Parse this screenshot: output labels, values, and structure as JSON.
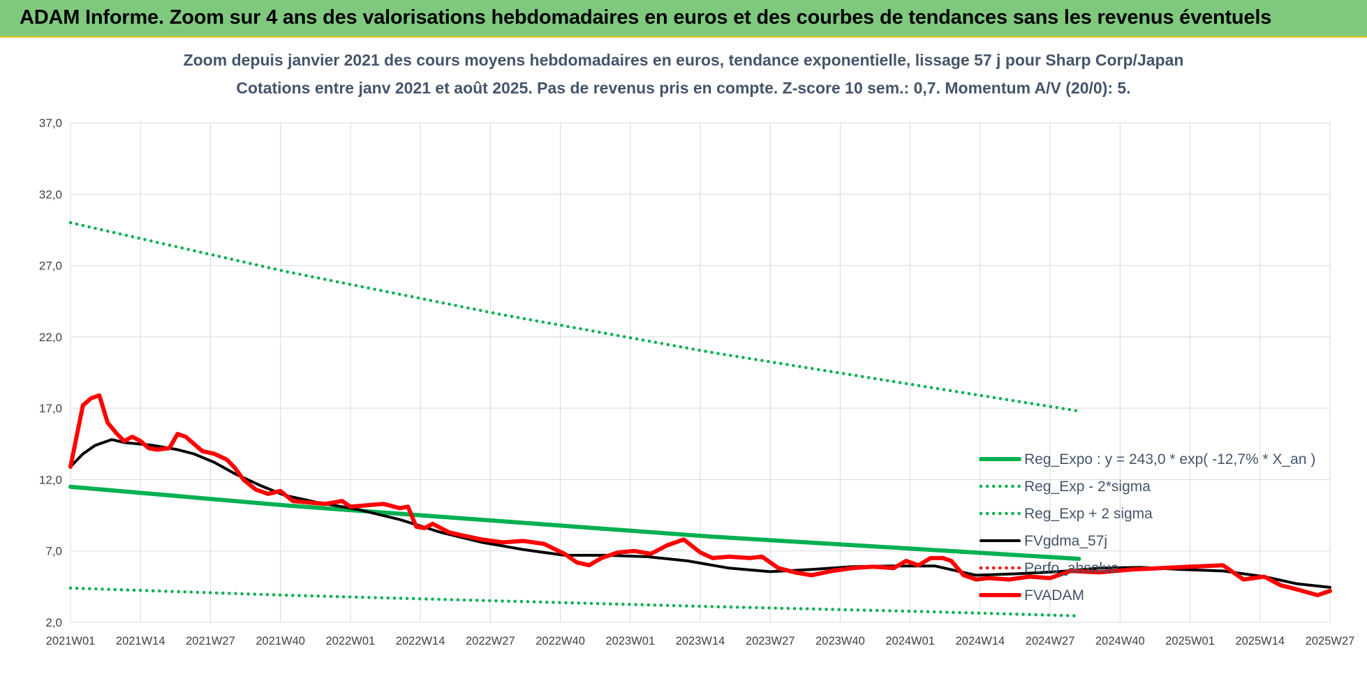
{
  "banner": {
    "title": "ADAM Informe. Zoom sur 4 ans des valorisations hebdomadaires en euros et des courbes de tendances sans les revenus éventuels"
  },
  "colors": {
    "trend": "#00b050",
    "band": "#00b050",
    "fvgdma": "#000000",
    "perfo": "#ff0000",
    "fvadam": "#ff0000",
    "grid": "#d9d9d9",
    "banner": "#7fc97f"
  },
  "chart_data": {
    "type": "line",
    "title": "Zoom depuis janvier 2021 des cours moyens hebdomadaires en euros, tendance exponentielle, lissage 57 j pour Sharp Corp/Japan",
    "subtitle": "Cotations entre janv 2021 et août 2025.  Pas de revenus pris en compte. Z-score 10 sem.: 0,7. Momentum A/V (20/0): 5.",
    "xlabel": "",
    "ylabel": "",
    "ylim": [
      2.0,
      37.0
    ],
    "ytick_labels": [
      "2,0",
      "7,0",
      "12,0",
      "17,0",
      "22,0",
      "27,0",
      "32,0",
      "37,0"
    ],
    "ytick_values": [
      2,
      7,
      12,
      17,
      22,
      27,
      32,
      37
    ],
    "xtick_labels": [
      "2021W01",
      "2021W14",
      "2021W27",
      "2021W40",
      "2022W01",
      "2022W14",
      "2022W27",
      "2022W40",
      "2023W01",
      "2023W14",
      "2023W27",
      "2023W40",
      "2024W01",
      "2024W14",
      "2024W27",
      "2024W40",
      "2025W01",
      "2025W14",
      "2025W27"
    ],
    "x_week_count": 245,
    "grid": true,
    "legend_position": "right",
    "series": [
      {
        "name": "Reg_Expo : y = 243,0 * exp( -12,7% *  X_an )",
        "style": "solid-thick",
        "color": "#00b050",
        "points": [
          [
            0,
            11.5
          ],
          [
            52,
            10.2
          ],
          [
            104,
            9.1
          ],
          [
            156,
            8.0
          ],
          [
            208,
            7.1
          ],
          [
            245,
            6.45
          ]
        ]
      },
      {
        "name": "Reg_Exp - 2*sigma",
        "style": "dotted",
        "color": "#00b050",
        "points": [
          [
            0,
            4.4
          ],
          [
            52,
            3.9
          ],
          [
            104,
            3.5
          ],
          [
            156,
            3.1
          ],
          [
            208,
            2.75
          ],
          [
            245,
            2.45
          ]
        ]
      },
      {
        "name": "Reg_Exp + 2 sigma",
        "style": "dotted",
        "color": "#00b050",
        "points": [
          [
            0,
            30.0
          ],
          [
            52,
            26.6
          ],
          [
            104,
            23.6
          ],
          [
            156,
            20.9
          ],
          [
            208,
            18.5
          ],
          [
            245,
            16.8
          ]
        ]
      },
      {
        "name": "FVgdma_57j",
        "style": "solid",
        "color": "#000000",
        "points": [
          [
            0,
            12.9
          ],
          [
            3,
            13.8
          ],
          [
            6,
            14.4
          ],
          [
            10,
            14.8
          ],
          [
            13,
            14.6
          ],
          [
            20,
            14.4
          ],
          [
            26,
            14.1
          ],
          [
            30,
            13.8
          ],
          [
            35,
            13.2
          ],
          [
            40,
            12.4
          ],
          [
            46,
            11.6
          ],
          [
            52,
            10.9
          ],
          [
            60,
            10.4
          ],
          [
            70,
            9.9
          ],
          [
            80,
            9.2
          ],
          [
            90,
            8.3
          ],
          [
            100,
            7.6
          ],
          [
            110,
            7.1
          ],
          [
            120,
            6.7
          ],
          [
            130,
            6.7
          ],
          [
            140,
            6.6
          ],
          [
            150,
            6.3
          ],
          [
            160,
            5.8
          ],
          [
            170,
            5.55
          ],
          [
            180,
            5.7
          ],
          [
            190,
            5.9
          ],
          [
            200,
            5.95
          ],
          [
            210,
            5.95
          ],
          [
            220,
            5.3
          ],
          [
            230,
            5.4
          ],
          [
            240,
            5.55
          ],
          [
            250,
            5.8
          ],
          [
            260,
            5.85
          ],
          [
            270,
            5.7
          ],
          [
            280,
            5.6
          ],
          [
            290,
            5.2
          ],
          [
            298,
            4.7
          ],
          [
            306,
            4.45
          ]
        ]
      },
      {
        "name": "Perfo_absolue",
        "style": "dotted",
        "color": "#ff0000",
        "points": []
      },
      {
        "name": "FVADAM",
        "style": "solid-thick",
        "color": "#ff0000",
        "points": [
          [
            0,
            12.9
          ],
          [
            3,
            17.2
          ],
          [
            5,
            17.7
          ],
          [
            7,
            17.9
          ],
          [
            9,
            16.0
          ],
          [
            11,
            15.3
          ],
          [
            13,
            14.7
          ],
          [
            15,
            15.0
          ],
          [
            17,
            14.7
          ],
          [
            19,
            14.2
          ],
          [
            21,
            14.1
          ],
          [
            24,
            14.2
          ],
          [
            26,
            15.2
          ],
          [
            28,
            15.0
          ],
          [
            30,
            14.5
          ],
          [
            32,
            14.0
          ],
          [
            35,
            13.8
          ],
          [
            38,
            13.4
          ],
          [
            40,
            12.8
          ],
          [
            42,
            12.0
          ],
          [
            45,
            11.3
          ],
          [
            48,
            11.0
          ],
          [
            51,
            11.2
          ],
          [
            54,
            10.5
          ],
          [
            58,
            10.4
          ],
          [
            62,
            10.3
          ],
          [
            66,
            10.5
          ],
          [
            68,
            10.1
          ],
          [
            72,
            10.2
          ],
          [
            76,
            10.3
          ],
          [
            80,
            10.0
          ],
          [
            82,
            10.1
          ],
          [
            84,
            8.7
          ],
          [
            86,
            8.6
          ],
          [
            88,
            8.9
          ],
          [
            92,
            8.3
          ],
          [
            95,
            8.1
          ],
          [
            100,
            7.8
          ],
          [
            105,
            7.6
          ],
          [
            110,
            7.7
          ],
          [
            115,
            7.5
          ],
          [
            120,
            6.8
          ],
          [
            123,
            6.2
          ],
          [
            126,
            6.0
          ],
          [
            129,
            6.5
          ],
          [
            133,
            6.9
          ],
          [
            137,
            7.0
          ],
          [
            141,
            6.8
          ],
          [
            145,
            7.4
          ],
          [
            149,
            7.8
          ],
          [
            153,
            6.9
          ],
          [
            156,
            6.5
          ],
          [
            160,
            6.6
          ],
          [
            165,
            6.5
          ],
          [
            168,
            6.6
          ],
          [
            172,
            5.8
          ],
          [
            176,
            5.5
          ],
          [
            180,
            5.3
          ],
          [
            185,
            5.6
          ],
          [
            190,
            5.8
          ],
          [
            195,
            5.9
          ],
          [
            200,
            5.8
          ],
          [
            203,
            6.3
          ],
          [
            206,
            6.0
          ],
          [
            209,
            6.5
          ],
          [
            212,
            6.5
          ],
          [
            214,
            6.3
          ],
          [
            217,
            5.3
          ],
          [
            220,
            5.0
          ],
          [
            223,
            5.1
          ],
          [
            228,
            5.0
          ],
          [
            233,
            5.2
          ],
          [
            238,
            5.1
          ],
          [
            243,
            5.6
          ],
          [
            250,
            5.5
          ],
          [
            258,
            5.7
          ],
          [
            265,
            5.8
          ],
          [
            272,
            5.9
          ],
          [
            280,
            6.0
          ],
          [
            285,
            5.0
          ],
          [
            290,
            5.2
          ],
          [
            294,
            4.6
          ],
          [
            298,
            4.3
          ],
          [
            303,
            3.9
          ],
          [
            306,
            4.2
          ]
        ]
      }
    ]
  }
}
